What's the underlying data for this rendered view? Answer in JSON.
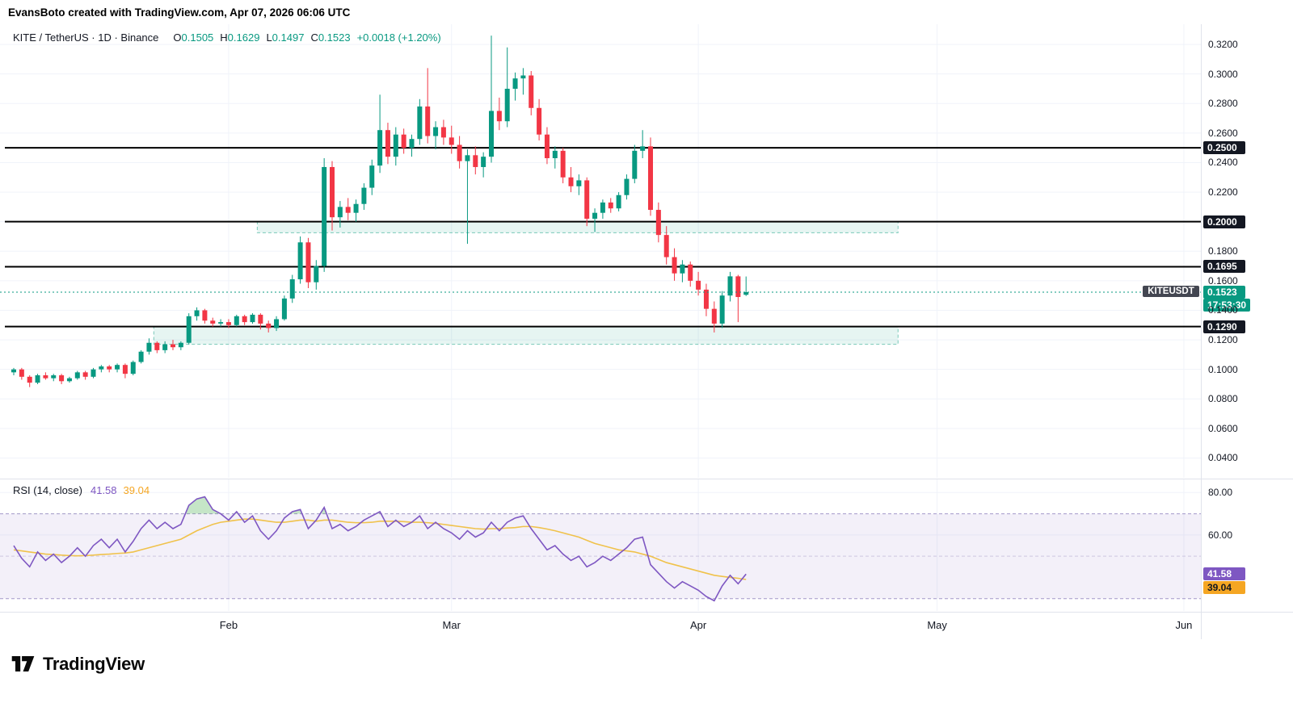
{
  "attribution": "EvansBoto created with TradingView.com, Apr 07, 2026 06:06 UTC",
  "legend": {
    "title": "KITE / TetherUS · 1D · Binance",
    "o_label": "O",
    "o": "0.1505",
    "h_label": "H",
    "h": "0.1629",
    "l_label": "L",
    "l": "0.1497",
    "c_label": "C",
    "c": "0.1523",
    "change": "+0.0018 (+1.20%)"
  },
  "rsi_legend": {
    "title": "RSI (14, close)",
    "value": "41.58",
    "ma_value": "39.04"
  },
  "last_price_badge": {
    "symbol": "KITEUSDT",
    "price_label": "0.1523",
    "countdown": "17:53:30"
  },
  "logo": {
    "text": "TradingView"
  },
  "colors": {
    "up": "#089981",
    "down": "#f23645",
    "text": "#131722",
    "grid": "#f0f3fa",
    "separator": "#e0e3eb",
    "badge_black": "#131722",
    "symbol_badge": "#434651",
    "level_line": "#000000",
    "zone_fill": "rgba(8,153,129,0.10)",
    "zone_border": "#2aa98f",
    "rsi_line": "#7e57c2",
    "rsi_ma": "#f0c24b",
    "rsi_ma_strong": "#f5a623",
    "rsi_band_fill": "rgba(126,87,194,0.09)",
    "rsi_band_line": "#a398c9",
    "rsi_mid_line": "#cdc6e0",
    "overbought_fill": "rgba(76,175,80,0.32)"
  },
  "chart_data": {
    "type": "candlestick",
    "title": "KITE / TetherUS · 1D · Binance",
    "ohlc_current": {
      "open": 0.1505,
      "high": 0.1629,
      "low": 0.1497,
      "close": 0.1523,
      "change": 0.0018,
      "change_pct": 1.2
    },
    "y_axis": {
      "min": 0.0266,
      "max": 0.3337,
      "ticks": [
        0.32,
        0.3,
        0.28,
        0.26,
        0.24,
        0.22,
        0.2,
        0.18,
        0.16,
        0.14,
        0.12,
        0.1,
        0.08,
        0.06,
        0.04
      ]
    },
    "x_axis": {
      "months": [
        {
          "label": "Feb",
          "i": 27
        },
        {
          "label": "Mar",
          "i": 55
        },
        {
          "label": "Apr",
          "i": 86
        },
        {
          "label": "May",
          "i": 116
        },
        {
          "label": "Jun",
          "i": 147
        }
      ]
    },
    "levels": [
      {
        "price": 0.25,
        "label": "0.2500"
      },
      {
        "price": 0.2,
        "label": "0.2000"
      },
      {
        "price": 0.1695,
        "label": "0.1695"
      },
      {
        "price": 0.129,
        "label": "0.1290"
      }
    ],
    "zones": [
      {
        "top": 0.2,
        "bottom": 0.1925,
        "i0": 31,
        "i1": 111.5
      },
      {
        "top": 0.129,
        "bottom": 0.117,
        "i0": 18,
        "i1": 111.5
      }
    ],
    "last": {
      "price": 0.1523,
      "label": "0.1523",
      "countdown": "17:53:30",
      "symbol": "KITEUSDT"
    },
    "candles": [
      [
        0.098,
        0.101,
        0.096,
        0.1
      ],
      [
        0.1,
        0.101,
        0.093,
        0.095
      ],
      [
        0.095,
        0.096,
        0.088,
        0.091
      ],
      [
        0.091,
        0.097,
        0.09,
        0.096
      ],
      [
        0.096,
        0.098,
        0.093,
        0.094
      ],
      [
        0.094,
        0.097,
        0.092,
        0.096
      ],
      [
        0.096,
        0.097,
        0.09,
        0.092
      ],
      [
        0.092,
        0.095,
        0.091,
        0.094
      ],
      [
        0.094,
        0.099,
        0.093,
        0.098
      ],
      [
        0.098,
        0.099,
        0.093,
        0.095
      ],
      [
        0.095,
        0.101,
        0.094,
        0.1
      ],
      [
        0.1,
        0.103,
        0.098,
        0.102
      ],
      [
        0.102,
        0.103,
        0.098,
        0.1
      ],
      [
        0.1,
        0.104,
        0.098,
        0.103
      ],
      [
        0.103,
        0.104,
        0.094,
        0.097
      ],
      [
        0.097,
        0.106,
        0.096,
        0.105
      ],
      [
        0.105,
        0.113,
        0.104,
        0.112
      ],
      [
        0.112,
        0.121,
        0.11,
        0.118
      ],
      [
        0.118,
        0.119,
        0.111,
        0.113
      ],
      [
        0.113,
        0.119,
        0.111,
        0.117
      ],
      [
        0.117,
        0.12,
        0.113,
        0.115
      ],
      [
        0.115,
        0.119,
        0.113,
        0.118
      ],
      [
        0.118,
        0.138,
        0.117,
        0.136
      ],
      [
        0.136,
        0.142,
        0.133,
        0.14
      ],
      [
        0.14,
        0.141,
        0.131,
        0.133
      ],
      [
        0.133,
        0.135,
        0.129,
        0.131
      ],
      [
        0.131,
        0.134,
        0.129,
        0.132
      ],
      [
        0.132,
        0.134,
        0.128,
        0.13
      ],
      [
        0.13,
        0.137,
        0.129,
        0.136
      ],
      [
        0.136,
        0.137,
        0.13,
        0.132
      ],
      [
        0.132,
        0.138,
        0.131,
        0.137
      ],
      [
        0.137,
        0.138,
        0.127,
        0.131
      ],
      [
        0.131,
        0.133,
        0.125,
        0.128
      ],
      [
        0.128,
        0.136,
        0.126,
        0.134
      ],
      [
        0.134,
        0.15,
        0.133,
        0.148
      ],
      [
        0.148,
        0.164,
        0.145,
        0.161
      ],
      [
        0.161,
        0.19,
        0.158,
        0.186
      ],
      [
        0.186,
        0.189,
        0.155,
        0.159
      ],
      [
        0.159,
        0.174,
        0.154,
        0.17
      ],
      [
        0.17,
        0.243,
        0.166,
        0.237
      ],
      [
        0.237,
        0.241,
        0.194,
        0.203
      ],
      [
        0.203,
        0.214,
        0.196,
        0.21
      ],
      [
        0.21,
        0.216,
        0.201,
        0.206
      ],
      [
        0.206,
        0.215,
        0.2,
        0.212
      ],
      [
        0.212,
        0.226,
        0.208,
        0.223
      ],
      [
        0.223,
        0.242,
        0.218,
        0.238
      ],
      [
        0.238,
        0.286,
        0.233,
        0.262
      ],
      [
        0.262,
        0.267,
        0.239,
        0.244
      ],
      [
        0.244,
        0.264,
        0.238,
        0.259
      ],
      [
        0.259,
        0.263,
        0.246,
        0.25
      ],
      [
        0.25,
        0.259,
        0.244,
        0.256
      ],
      [
        0.256,
        0.283,
        0.252,
        0.278
      ],
      [
        0.278,
        0.304,
        0.253,
        0.258
      ],
      [
        0.258,
        0.268,
        0.249,
        0.264
      ],
      [
        0.264,
        0.269,
        0.252,
        0.257
      ],
      [
        0.257,
        0.265,
        0.246,
        0.252
      ],
      [
        0.252,
        0.258,
        0.236,
        0.241
      ],
      [
        0.241,
        0.249,
        0.185,
        0.245
      ],
      [
        0.245,
        0.251,
        0.232,
        0.237
      ],
      [
        0.237,
        0.247,
        0.23,
        0.244
      ],
      [
        0.244,
        0.326,
        0.24,
        0.275
      ],
      [
        0.275,
        0.284,
        0.262,
        0.268
      ],
      [
        0.268,
        0.318,
        0.264,
        0.29
      ],
      [
        0.29,
        0.301,
        0.282,
        0.297
      ],
      [
        0.297,
        0.304,
        0.286,
        0.299
      ],
      [
        0.299,
        0.302,
        0.272,
        0.277
      ],
      [
        0.277,
        0.283,
        0.255,
        0.259
      ],
      [
        0.259,
        0.264,
        0.239,
        0.243
      ],
      [
        0.243,
        0.251,
        0.236,
        0.248
      ],
      [
        0.248,
        0.25,
        0.226,
        0.23
      ],
      [
        0.23,
        0.237,
        0.22,
        0.224
      ],
      [
        0.224,
        0.232,
        0.218,
        0.228
      ],
      [
        0.228,
        0.23,
        0.197,
        0.202
      ],
      [
        0.202,
        0.209,
        0.193,
        0.206
      ],
      [
        0.206,
        0.215,
        0.202,
        0.213
      ],
      [
        0.213,
        0.216,
        0.206,
        0.209
      ],
      [
        0.209,
        0.22,
        0.207,
        0.218
      ],
      [
        0.218,
        0.232,
        0.215,
        0.229
      ],
      [
        0.229,
        0.252,
        0.226,
        0.248
      ],
      [
        0.248,
        0.262,
        0.243,
        0.251
      ],
      [
        0.251,
        0.257,
        0.204,
        0.208
      ],
      [
        0.208,
        0.213,
        0.186,
        0.191
      ],
      [
        0.191,
        0.197,
        0.171,
        0.176
      ],
      [
        0.176,
        0.182,
        0.16,
        0.165
      ],
      [
        0.165,
        0.174,
        0.159,
        0.171
      ],
      [
        0.171,
        0.173,
        0.156,
        0.16
      ],
      [
        0.16,
        0.166,
        0.15,
        0.154
      ],
      [
        0.154,
        0.158,
        0.136,
        0.141
      ],
      [
        0.141,
        0.146,
        0.125,
        0.131
      ],
      [
        0.131,
        0.153,
        0.128,
        0.15
      ],
      [
        0.15,
        0.166,
        0.146,
        0.163
      ],
      [
        0.163,
        0.164,
        0.132,
        0.149
      ],
      [
        0.1505,
        0.1629,
        0.1497,
        0.1523
      ]
    ],
    "rsi": {
      "period": 14,
      "source": "close",
      "last": 41.58,
      "ma_last": 39.04,
      "axis": {
        "min": 24.2,
        "max": 86.2
      },
      "ticks": [
        80,
        60
      ],
      "bands": {
        "upper": 70,
        "middle": 50,
        "lower": 30
      },
      "values": [
        55,
        49,
        45,
        52,
        48,
        51,
        47,
        50,
        54,
        50,
        55,
        58,
        54,
        58,
        52,
        57,
        63,
        67,
        63,
        66,
        63,
        65,
        74,
        77,
        78,
        72,
        70,
        67,
        71,
        66,
        69,
        62,
        58,
        62,
        68,
        71,
        72,
        63,
        67,
        73,
        63,
        65,
        62,
        64,
        67,
        69,
        71,
        64,
        67,
        64,
        66,
        69,
        63,
        66,
        63,
        61,
        58,
        62,
        59,
        61,
        66,
        62,
        66,
        68,
        69,
        63,
        58,
        53,
        55,
        51,
        48,
        50,
        45,
        47,
        50,
        48,
        51,
        54,
        58,
        59,
        46,
        42,
        38,
        35,
        38,
        36,
        34,
        31,
        29,
        36,
        41,
        37,
        41.58
      ],
      "ma": [
        53,
        52.5,
        52,
        51.5,
        51,
        50.8,
        50.5,
        50.3,
        50.2,
        50.3,
        50.5,
        50.8,
        51,
        51.3,
        51.5,
        52,
        53,
        54,
        55,
        56,
        57,
        58,
        60,
        62,
        63.5,
        65,
        66,
        66.5,
        67,
        67.5,
        67.5,
        67,
        66.5,
        66,
        66,
        66.5,
        67,
        67,
        66.5,
        67,
        67,
        66.5,
        66,
        65.8,
        65.8,
        66,
        66.5,
        66.5,
        66.5,
        66.3,
        66,
        66,
        65.8,
        65.5,
        65,
        64.5,
        64,
        63.5,
        63,
        62.8,
        63,
        63,
        63.3,
        63.5,
        64,
        64,
        63.5,
        62.8,
        62,
        61,
        60,
        59,
        57.5,
        56,
        55,
        54,
        53,
        52.5,
        52,
        51,
        50,
        48.5,
        47,
        46,
        45,
        44,
        43,
        42,
        41,
        40.5,
        40,
        39.6,
        39.04
      ]
    }
  }
}
